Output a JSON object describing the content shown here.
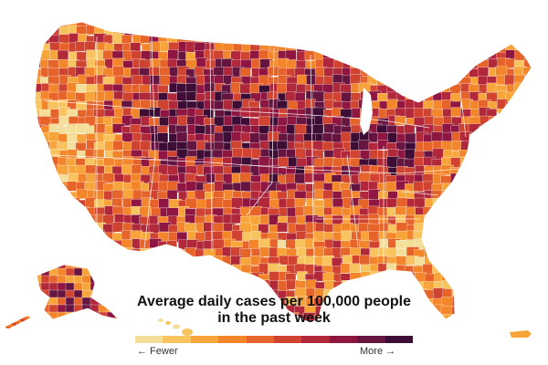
{
  "legend": {
    "title_line1": "Average daily cases per 100,000 people",
    "title_line2": "in the past week",
    "low_label": "← Fewer",
    "high_label": "More →",
    "scale_colors": [
      "#f3df9a",
      "#f8c45f",
      "#f7a53b",
      "#f3852a",
      "#e6632a",
      "#cf4330",
      "#b0283a",
      "#8e1640",
      "#661440",
      "#3e0d36"
    ]
  },
  "map": {
    "stroke_color": "#ffffff",
    "palette_note_colors": [
      "#f3df9a",
      "#f8c45f",
      "#f7a53b",
      "#f3852a",
      "#e6632a",
      "#cf4330",
      "#b0283a",
      "#8e1640",
      "#661440",
      "#3e0d36"
    ]
  }
}
